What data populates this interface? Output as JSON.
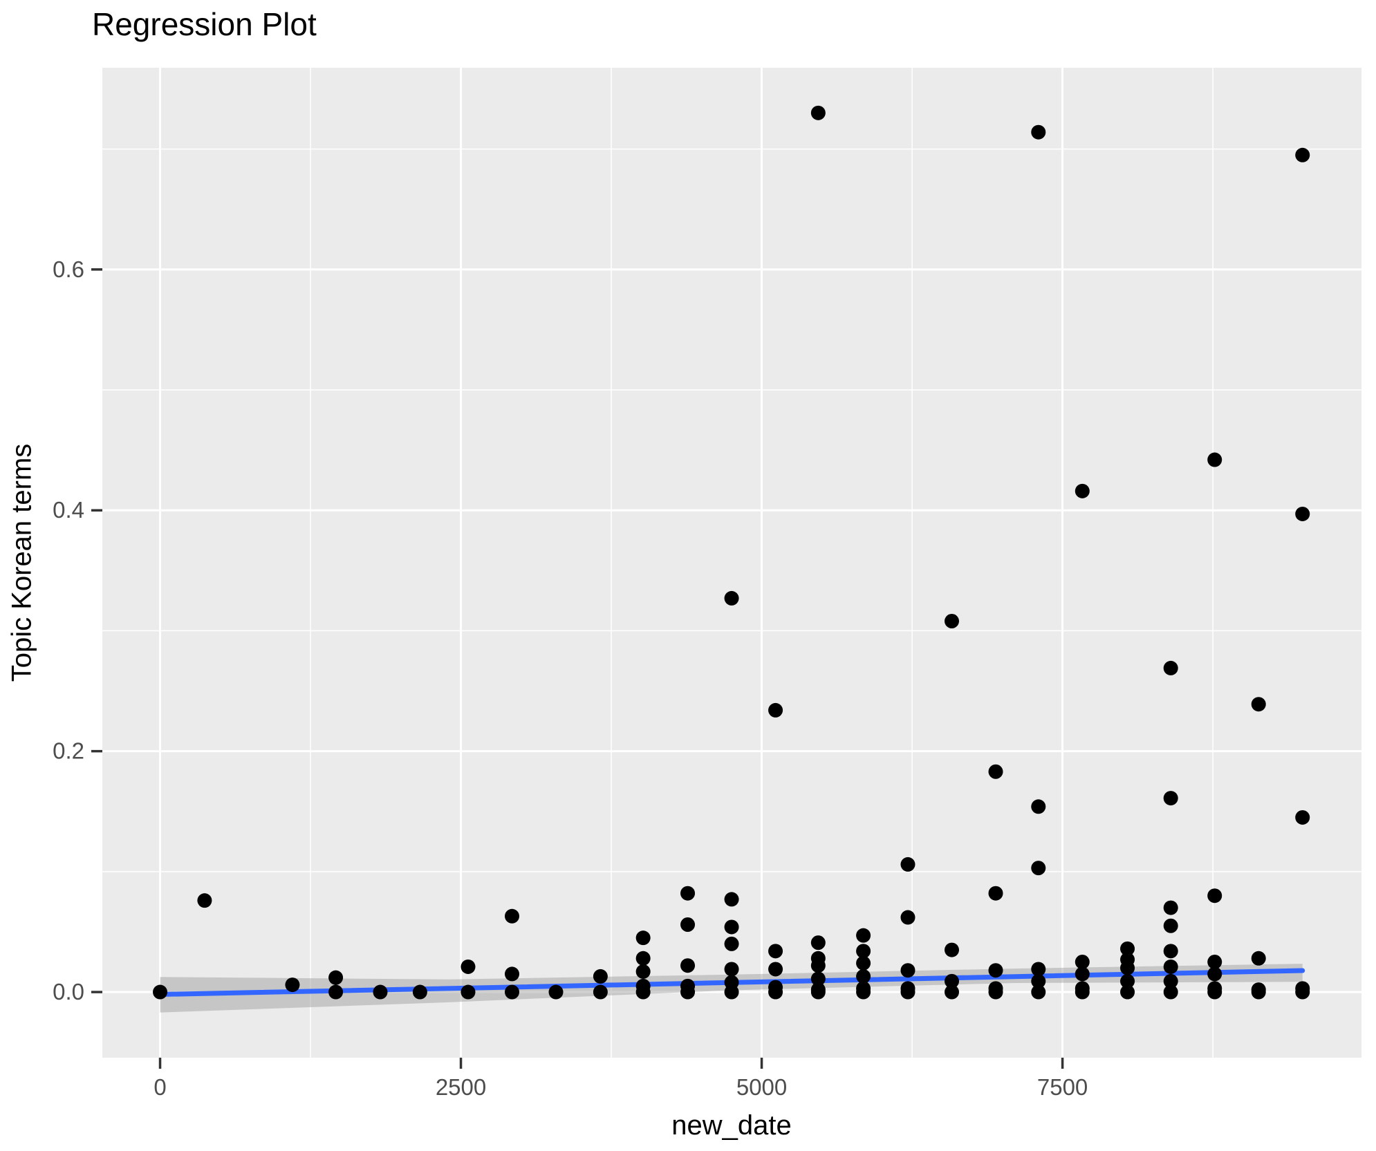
{
  "chart_data": {
    "type": "scatter",
    "title": "Regression Plot",
    "xlabel": "new_date",
    "ylabel": "Topic Korean terms",
    "xlim": [
      -480,
      9985
    ],
    "ylim": [
      -0.0545,
      0.7675
    ],
    "grid": "on",
    "legend": "none",
    "x_ticks": {
      "values": [
        0,
        2500,
        5000,
        7500
      ],
      "labels": [
        "0",
        "2500",
        "5000",
        "7500"
      ]
    },
    "y_ticks": {
      "values": [
        0.0,
        0.2,
        0.4,
        0.6
      ],
      "labels": [
        "0.0",
        "0.2",
        "0.4",
        "0.6"
      ]
    },
    "x_minor": [
      1250,
      3750,
      6250,
      8750
    ],
    "y_minor": [
      0.1,
      0.3,
      0.5,
      0.7
    ],
    "points": [
      [
        0,
        0
      ],
      [
        370,
        0.076
      ],
      [
        1100,
        0.006
      ],
      [
        1460,
        0.012
      ],
      [
        1460,
        0
      ],
      [
        1830,
        0
      ],
      [
        2160,
        0
      ],
      [
        2560,
        0.021
      ],
      [
        2560,
        0
      ],
      [
        2925,
        0.063
      ],
      [
        2925,
        0.015
      ],
      [
        2925,
        0
      ],
      [
        3290,
        0
      ],
      [
        3660,
        0.013
      ],
      [
        3660,
        0
      ],
      [
        4015,
        0.045
      ],
      [
        4015,
        0.028
      ],
      [
        4015,
        0.017
      ],
      [
        4015,
        0.005
      ],
      [
        4015,
        0
      ],
      [
        4385,
        0.082
      ],
      [
        4385,
        0.056
      ],
      [
        4385,
        0.022
      ],
      [
        4385,
        0.005
      ],
      [
        4385,
        0
      ],
      [
        4750,
        0.327
      ],
      [
        4750,
        0.077
      ],
      [
        4750,
        0.054
      ],
      [
        4750,
        0.04
      ],
      [
        4750,
        0.019
      ],
      [
        4750,
        0.008
      ],
      [
        4750,
        0
      ],
      [
        5115,
        0.234
      ],
      [
        5115,
        0.034
      ],
      [
        5115,
        0.019
      ],
      [
        5115,
        0.004
      ],
      [
        5115,
        0
      ],
      [
        5470,
        0.73
      ],
      [
        5470,
        0.041
      ],
      [
        5470,
        0.028
      ],
      [
        5470,
        0.022
      ],
      [
        5470,
        0.011
      ],
      [
        5470,
        0.002
      ],
      [
        5470,
        0
      ],
      [
        5845,
        0.047
      ],
      [
        5845,
        0.034
      ],
      [
        5845,
        0.024
      ],
      [
        5845,
        0.013
      ],
      [
        5845,
        0.003
      ],
      [
        5845,
        0
      ],
      [
        6215,
        0.106
      ],
      [
        6215,
        0.062
      ],
      [
        6215,
        0.018
      ],
      [
        6215,
        0.003
      ],
      [
        6215,
        0
      ],
      [
        6580,
        0.308
      ],
      [
        6580,
        0.035
      ],
      [
        6580,
        0.009
      ],
      [
        6580,
        0
      ],
      [
        6945,
        0.183
      ],
      [
        6945,
        0.082
      ],
      [
        6945,
        0.018
      ],
      [
        6945,
        0.003
      ],
      [
        6945,
        0
      ],
      [
        7300,
        0.714
      ],
      [
        7300,
        0.154
      ],
      [
        7300,
        0.103
      ],
      [
        7300,
        0.019
      ],
      [
        7300,
        0.009
      ],
      [
        7300,
        0
      ],
      [
        7665,
        0.416
      ],
      [
        7665,
        0.025
      ],
      [
        7665,
        0.015
      ],
      [
        7665,
        0.003
      ],
      [
        7665,
        0
      ],
      [
        8040,
        0.036
      ],
      [
        8040,
        0.027
      ],
      [
        8040,
        0.02
      ],
      [
        8040,
        0.009
      ],
      [
        8040,
        0
      ],
      [
        8400,
        0.269
      ],
      [
        8400,
        0.161
      ],
      [
        8400,
        0.07
      ],
      [
        8400,
        0.055
      ],
      [
        8400,
        0.034
      ],
      [
        8400,
        0.021
      ],
      [
        8400,
        0.009
      ],
      [
        8400,
        0
      ],
      [
        8765,
        0.442
      ],
      [
        8765,
        0.08
      ],
      [
        8765,
        0.025
      ],
      [
        8765,
        0.015
      ],
      [
        8765,
        0.003
      ],
      [
        8765,
        0
      ],
      [
        9130,
        0.239
      ],
      [
        9130,
        0.028
      ],
      [
        9130,
        0.002
      ],
      [
        9130,
        0
      ],
      [
        9495,
        0.695
      ],
      [
        9495,
        0.397
      ],
      [
        9495,
        0.145
      ],
      [
        9495,
        0.003
      ],
      [
        9495,
        0
      ]
    ],
    "regression_line": {
      "x1": 0,
      "y1": -0.002,
      "x2": 9495,
      "y2": 0.0178
    },
    "confidence_band": [
      {
        "x": 0,
        "lo": -0.017,
        "hi": 0.0125
      },
      {
        "x": 2400,
        "lo": -0.0085,
        "hi": 0.0105
      },
      {
        "x": 4750,
        "lo": 0.0015,
        "hi": 0.0145
      },
      {
        "x": 7100,
        "lo": 0.0075,
        "hi": 0.0195
      },
      {
        "x": 9495,
        "lo": 0.0085,
        "hi": 0.0235
      }
    ],
    "colors": {
      "panel_background": "#EBEBEB",
      "gridline": "#FFFFFF",
      "point": "#000000",
      "regression_line": "#3366FF",
      "confidence_band": "rgba(153,153,153,0.45)",
      "tick_label": "#4D4D4D",
      "tick_mark": "#333333",
      "title_text": "#000000"
    }
  }
}
